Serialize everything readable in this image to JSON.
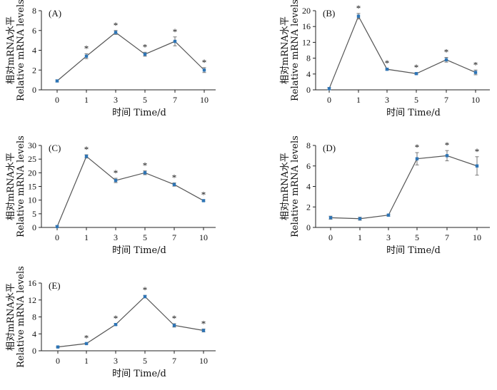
{
  "chart_data": [
    {
      "type": "line",
      "panel_label": "(A)",
      "categories": [
        "0",
        "1",
        "3",
        "5",
        "7",
        "10"
      ],
      "values": [
        0.9,
        3.4,
        5.8,
        3.6,
        4.9,
        2.0
      ],
      "errors": [
        0.1,
        0.25,
        0.2,
        0.2,
        0.45,
        0.25
      ],
      "significant": [
        false,
        true,
        true,
        true,
        true,
        true
      ],
      "ylim": [
        0,
        8
      ],
      "yticks": [
        0,
        2,
        4,
        6,
        8
      ],
      "xlabel": "时间 Time/d",
      "ylabel": [
        "相对mRNA水平",
        "Relative mRNA levels"
      ],
      "star": "*"
    },
    {
      "type": "line",
      "panel_label": "(B)",
      "categories": [
        "0",
        "1",
        "3",
        "5",
        "7",
        "10"
      ],
      "values": [
        0.3,
        18.6,
        5.2,
        4.1,
        7.6,
        4.4
      ],
      "errors": [
        0.3,
        0.7,
        0.2,
        0.2,
        0.6,
        0.6
      ],
      "significant": [
        false,
        true,
        true,
        true,
        true,
        true
      ],
      "ylim": [
        0,
        20
      ],
      "yticks": [
        0,
        4,
        8,
        12,
        16,
        20
      ],
      "xlabel": "时间 Time/d",
      "ylabel": [
        "相对mRNA水平",
        "Relative mRNA levels"
      ],
      "star": "*"
    },
    {
      "type": "line",
      "panel_label": "(C)",
      "categories": [
        "0",
        "1",
        "3",
        "5",
        "7",
        "10"
      ],
      "values": [
        0.3,
        26.0,
        17.2,
        20.0,
        15.7,
        9.8
      ],
      "errors": [
        0.3,
        0.6,
        0.8,
        0.7,
        0.6,
        0.3
      ],
      "significant": [
        false,
        true,
        true,
        true,
        true,
        true
      ],
      "ylim": [
        0,
        30
      ],
      "yticks": [
        0,
        5,
        10,
        15,
        20,
        25,
        30
      ],
      "xlabel": "时间 Time/d",
      "ylabel": [
        "相对mRNA水平",
        "Relative mRNA levels"
      ],
      "star": "*"
    },
    {
      "type": "line",
      "panel_label": "(D)",
      "categories": [
        "0",
        "1",
        "3",
        "5",
        "7",
        "10"
      ],
      "values": [
        0.95,
        0.85,
        1.2,
        6.7,
        7.0,
        6.0
      ],
      "errors": [
        0.15,
        0.15,
        0.1,
        0.6,
        0.5,
        0.9
      ],
      "significant": [
        false,
        false,
        false,
        true,
        true,
        true
      ],
      "ylim": [
        0,
        8
      ],
      "yticks": [
        0,
        2,
        4,
        6,
        8
      ],
      "xlabel": "时间 Time/d",
      "ylabel": [
        "相对mRNA水平",
        "Relative mRNA levels"
      ],
      "star": "*"
    },
    {
      "type": "line",
      "panel_label": "(E)",
      "categories": [
        "0",
        "1",
        "3",
        "5",
        "7",
        "10"
      ],
      "values": [
        0.9,
        1.7,
        6.2,
        12.8,
        6.0,
        4.8
      ],
      "errors": [
        0.1,
        0.1,
        0.2,
        0.3,
        0.4,
        0.35
      ],
      "significant": [
        false,
        true,
        true,
        true,
        true,
        true
      ],
      "ylim": [
        0,
        16
      ],
      "yticks": [
        0,
        4,
        8,
        12,
        16
      ],
      "xlabel": "时间 Time/d",
      "ylabel": [
        "相对mRNA水平",
        "Relative mRNA levels"
      ],
      "star": "*"
    }
  ],
  "style": {
    "line_color": "#555555",
    "marker_color": "#2e75b6",
    "error_color": "#777777",
    "axis_color": "#222222"
  }
}
